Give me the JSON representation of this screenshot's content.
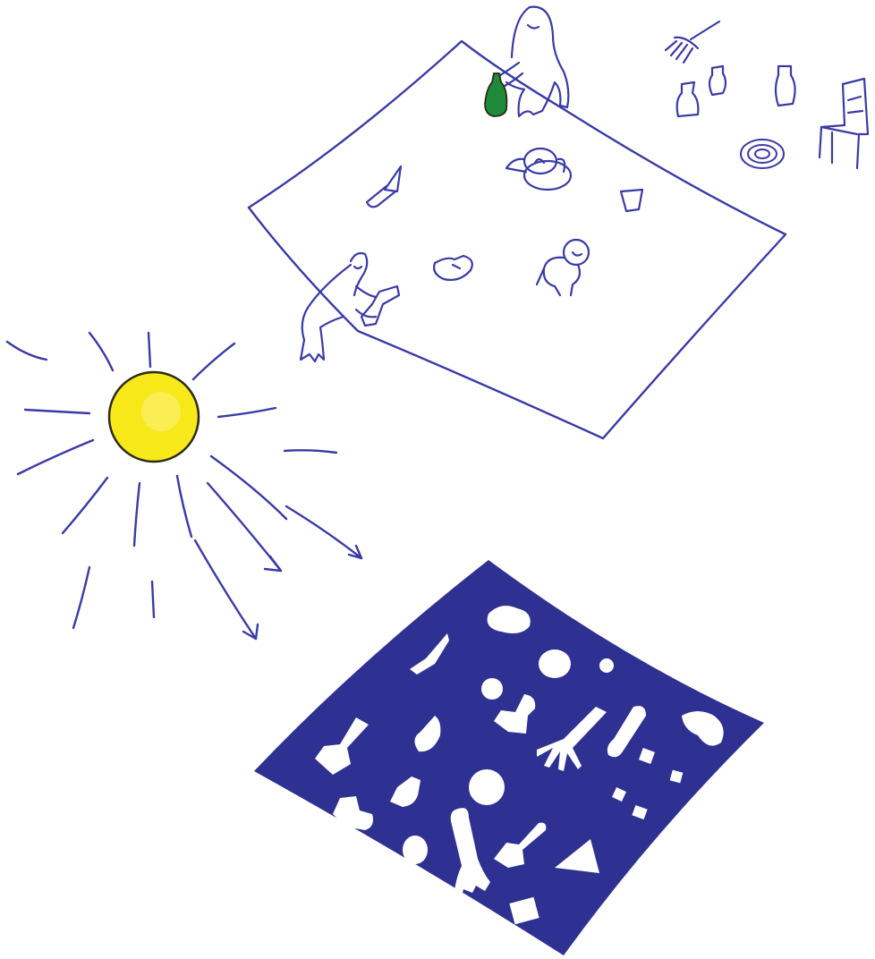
{
  "colors": {
    "ink": "#3a3aa6",
    "sun_fill": "#f7e819",
    "sun_outline": "#2a2a1a",
    "print_fill": "#2e3192",
    "print_shapes": "#ffffff",
    "bottle_green": "#1f8a3a",
    "background": "#ffffff"
  },
  "elements": {
    "sun": "sun-icon",
    "sheet": "photosensitive-sheet",
    "figures": [
      "figure-holding-bottle",
      "figure-holding-tube"
    ],
    "objects_on_sheet": [
      "knife-icon",
      "teapot-icon",
      "cup-icon",
      "shoe-icon",
      "doll-icon"
    ],
    "objects_off_sheet": [
      "rake-icon",
      "vase-icon",
      "jar-icon",
      "bottle-icon",
      "chair-icon",
      "coiled-rope-icon"
    ],
    "print": "cyanotype-print"
  }
}
